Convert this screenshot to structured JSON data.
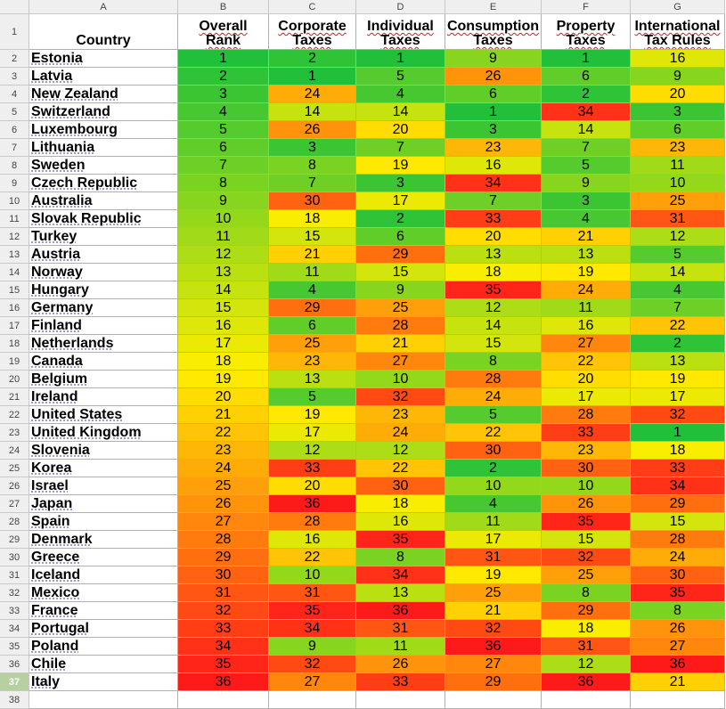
{
  "column_letters": [
    "A",
    "B",
    "C",
    "D",
    "E",
    "F",
    "G"
  ],
  "headers": [
    {
      "line1": "",
      "line2": "Country"
    },
    {
      "line1": "Overall",
      "line2": "Rank"
    },
    {
      "line1": "Corporate",
      "line2": "Taxes"
    },
    {
      "line1": "Individual",
      "line2": "Taxes"
    },
    {
      "line1": "Consumption",
      "line2": "Taxes"
    },
    {
      "line1": "Property",
      "line2": "Taxes"
    },
    {
      "line1": "International",
      "line2": "Tax Rules"
    }
  ],
  "active_row": 37,
  "extra_row_number": "38",
  "rows": [
    {
      "country": "Estonia",
      "values": [
        1,
        2,
        1,
        9,
        1,
        16
      ]
    },
    {
      "country": "Latvia",
      "values": [
        2,
        1,
        5,
        26,
        6,
        9
      ]
    },
    {
      "country": "New Zealand",
      "values": [
        3,
        24,
        4,
        6,
        2,
        20
      ]
    },
    {
      "country": "Switzerland",
      "values": [
        4,
        14,
        14,
        1,
        34,
        3
      ]
    },
    {
      "country": "Luxembourg",
      "values": [
        5,
        26,
        20,
        3,
        14,
        6
      ]
    },
    {
      "country": "Lithuania",
      "values": [
        6,
        3,
        7,
        23,
        7,
        23
      ]
    },
    {
      "country": "Sweden",
      "values": [
        7,
        8,
        19,
        16,
        5,
        11
      ]
    },
    {
      "country": "Czech Republic",
      "values": [
        8,
        7,
        3,
        34,
        9,
        10
      ]
    },
    {
      "country": "Australia",
      "values": [
        9,
        30,
        17,
        7,
        3,
        25
      ]
    },
    {
      "country": "Slovak Republic",
      "values": [
        10,
        18,
        2,
        33,
        4,
        31
      ]
    },
    {
      "country": "Turkey",
      "values": [
        11,
        15,
        6,
        20,
        21,
        12
      ]
    },
    {
      "country": "Austria",
      "values": [
        12,
        21,
        29,
        13,
        13,
        5
      ]
    },
    {
      "country": "Norway",
      "values": [
        13,
        11,
        15,
        18,
        19,
        14
      ]
    },
    {
      "country": "Hungary",
      "values": [
        14,
        4,
        9,
        35,
        24,
        4
      ]
    },
    {
      "country": "Germany",
      "values": [
        15,
        29,
        25,
        12,
        11,
        7
      ]
    },
    {
      "country": "Finland",
      "values": [
        16,
        6,
        28,
        14,
        16,
        22
      ]
    },
    {
      "country": "Netherlands",
      "values": [
        17,
        25,
        21,
        15,
        27,
        2
      ]
    },
    {
      "country": "Canada",
      "values": [
        18,
        23,
        27,
        8,
        22,
        13
      ]
    },
    {
      "country": "Belgium",
      "values": [
        19,
        13,
        10,
        28,
        20,
        19
      ]
    },
    {
      "country": "Ireland",
      "values": [
        20,
        5,
        32,
        24,
        17,
        17
      ]
    },
    {
      "country": "United States",
      "values": [
        21,
        19,
        23,
        5,
        28,
        32
      ]
    },
    {
      "country": "United Kingdom",
      "values": [
        22,
        17,
        24,
        22,
        33,
        1
      ]
    },
    {
      "country": "Slovenia",
      "values": [
        23,
        12,
        12,
        30,
        23,
        18
      ]
    },
    {
      "country": "Korea",
      "values": [
        24,
        33,
        22,
        2,
        30,
        33
      ]
    },
    {
      "country": "Israel",
      "values": [
        25,
        20,
        30,
        10,
        10,
        34
      ]
    },
    {
      "country": "Japan",
      "values": [
        26,
        36,
        18,
        4,
        26,
        29
      ]
    },
    {
      "country": "Spain",
      "values": [
        27,
        28,
        16,
        11,
        35,
        15
      ]
    },
    {
      "country": "Denmark",
      "values": [
        28,
        16,
        35,
        17,
        15,
        28
      ]
    },
    {
      "country": "Greece",
      "values": [
        29,
        22,
        8,
        31,
        32,
        24
      ]
    },
    {
      "country": "Iceland",
      "values": [
        30,
        10,
        34,
        19,
        25,
        30
      ]
    },
    {
      "country": "Mexico",
      "values": [
        31,
        31,
        13,
        25,
        8,
        35
      ]
    },
    {
      "country": "France",
      "values": [
        32,
        35,
        36,
        21,
        29,
        8
      ]
    },
    {
      "country": "Portugal",
      "values": [
        33,
        34,
        31,
        32,
        18,
        26
      ]
    },
    {
      "country": "Poland",
      "values": [
        34,
        9,
        11,
        36,
        31,
        27
      ]
    },
    {
      "country": "Chile",
      "values": [
        35,
        32,
        26,
        27,
        12,
        36
      ]
    },
    {
      "country": "Italy",
      "values": [
        36,
        27,
        33,
        29,
        36,
        21
      ]
    }
  ],
  "color_scale": {
    "low_rank_color": "#22c03a",
    "mid_rank_color": "#ffee00",
    "high_rank_color": "#ff1a1a",
    "min_rank": 1,
    "max_rank": 36
  }
}
